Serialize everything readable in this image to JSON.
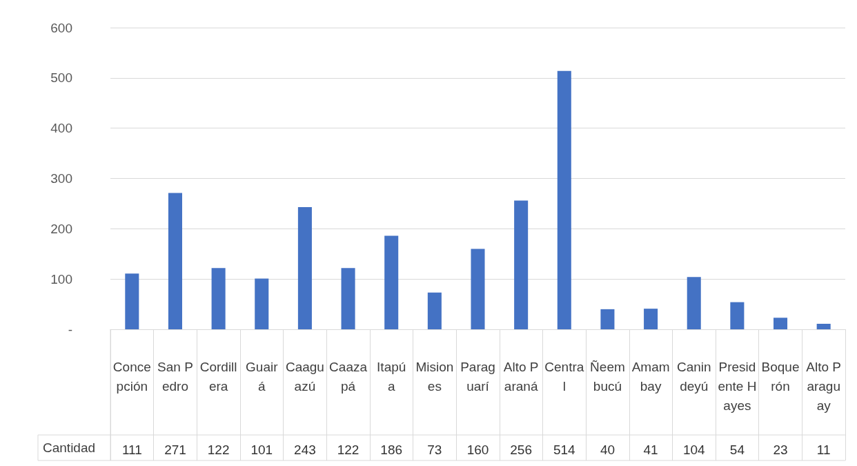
{
  "chart_data": {
    "type": "bar",
    "categories": [
      "Concepción",
      "San Pedro",
      "Cordillera",
      "Guairá",
      "Caaguazú",
      "Caazapá",
      "Itapúa",
      "Misiones",
      "Paraguarí",
      "Alto Paraná",
      "Central",
      "Ñeembucú",
      "Amambay",
      "Canindeyú",
      "Presidente Hayes",
      "Boquerón",
      "Alto Paraguay"
    ],
    "series": [
      {
        "name": "Cantidad",
        "color": "#4472c4",
        "values": [
          111,
          271,
          122,
          101,
          243,
          122,
          186,
          73,
          160,
          256,
          514,
          40,
          41,
          104,
          54,
          23,
          11
        ]
      }
    ],
    "ylim": [
      0,
      600
    ],
    "yticks": [
      {
        "value": 0,
        "label": "-"
      },
      100,
      200,
      300,
      400,
      500,
      600
    ],
    "grid": "y",
    "legend": false,
    "data_labels": true
  }
}
